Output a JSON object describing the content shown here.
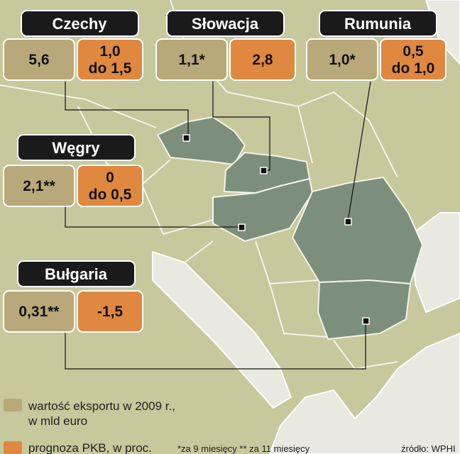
{
  "countries": [
    {
      "name": "Czechy",
      "export": [
        "5,6"
      ],
      "gdp": [
        "1,0",
        "do 1,5"
      ]
    },
    {
      "name": "Słowacja",
      "export": [
        "1,1*"
      ],
      "gdp": [
        "2,8"
      ]
    },
    {
      "name": "Rumunia",
      "export": [
        "1,0*"
      ],
      "gdp": [
        "0,5",
        "do 1,0"
      ]
    },
    {
      "name": "Węgry",
      "export": [
        "2,1**"
      ],
      "gdp": [
        "0",
        "do 0,5"
      ]
    },
    {
      "name": "Bułgaria",
      "export": [
        "0,31**"
      ],
      "gdp": [
        "-1,5"
      ]
    }
  ],
  "legend": {
    "export": [
      "wartość eksportu w 2009 r.,",
      "w mld euro"
    ],
    "gdp": [
      "prognoza PKB, w proc."
    ]
  },
  "footnote": "*za 9 miesięcy ** za 11 miesięcy",
  "source": "źródło: WPHI"
}
